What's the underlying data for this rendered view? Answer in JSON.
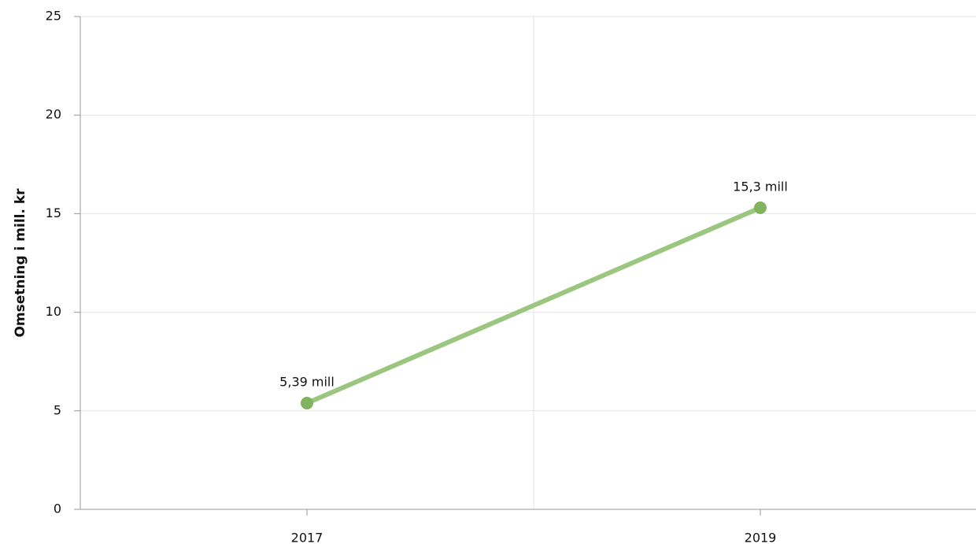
{
  "chart_data": {
    "type": "line",
    "y_axis_label": "Omsetning i mill. kr",
    "categories": [
      "2017",
      "2019"
    ],
    "values": [
      5.39,
      15.3
    ],
    "value_labels": [
      "5,39 mill",
      "15,3 mill"
    ],
    "color": "#9bc67f",
    "marker_color": "#82b45f",
    "ylim": [
      0,
      25
    ],
    "yticks": [
      0,
      5,
      10,
      15,
      20,
      25
    ],
    "grid": true
  }
}
